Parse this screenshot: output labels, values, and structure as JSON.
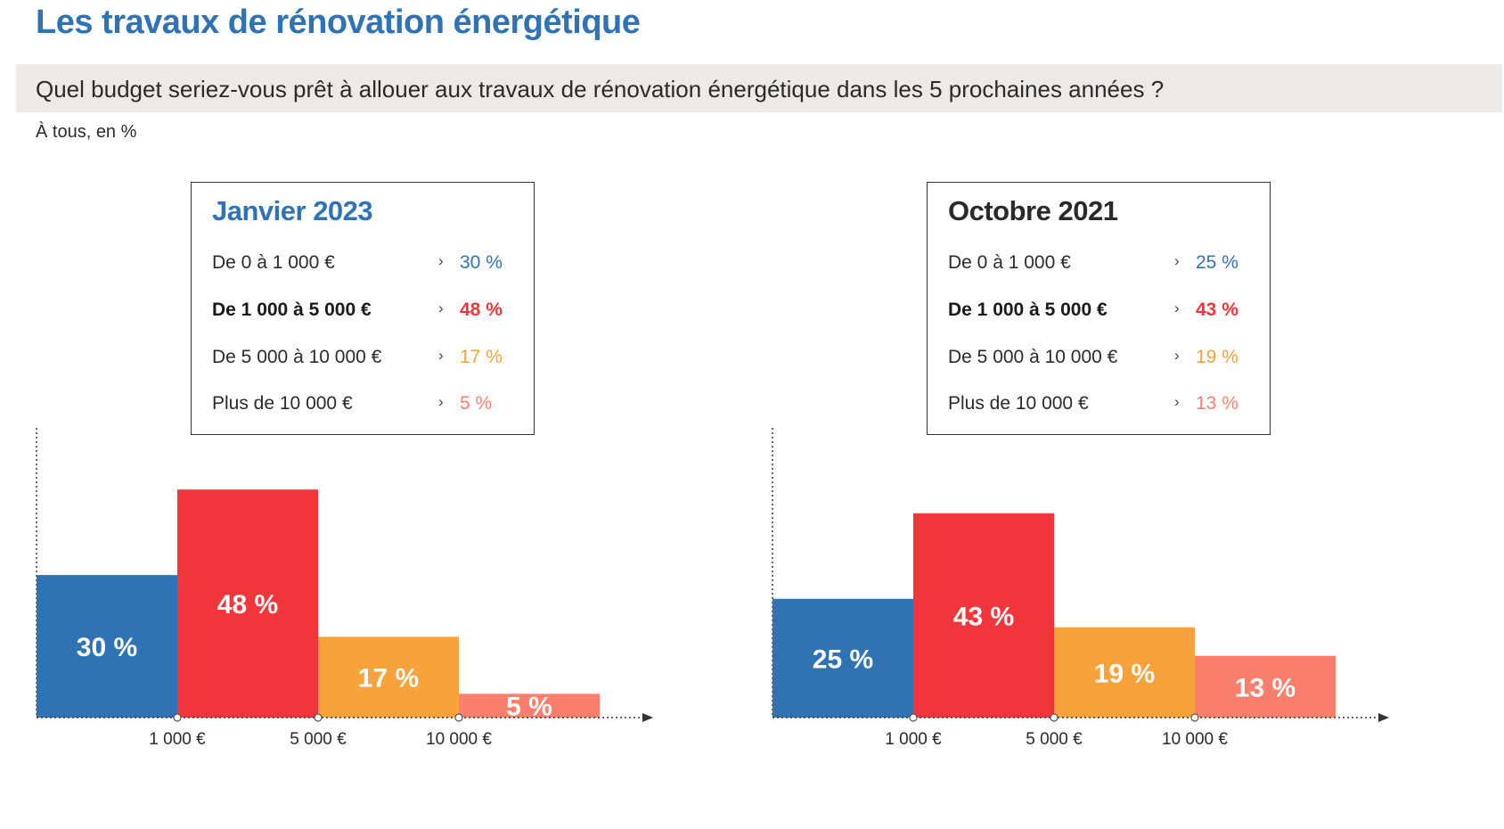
{
  "header": {
    "title": "Les travaux de rénovation énergétique",
    "question": "Quel budget seriez-vous prêt à allouer aux travaux de rénovation énergétique dans les 5 prochaines années ?",
    "base": "À tous, en %"
  },
  "colors": {
    "title": "#2f73b5",
    "blue": "#2f73b5",
    "red": "#f0363a",
    "orange": "#f7a23a",
    "salmon": "#fb7f6d",
    "legend_title_dark": "#2a2a2a",
    "question_bar": "#ece9e6"
  },
  "panels": [
    {
      "legend_title": "Janvier 2023",
      "legend_title_color": "#2f73b5",
      "legend": [
        {
          "label": "De 0 à 1 000 €",
          "arrow": "›",
          "value": "30 %",
          "color": "#2f73b5",
          "bold": false
        },
        {
          "label": "De 1 000 à 5 000 €",
          "arrow": "›",
          "value": "48 %",
          "color": "#f0363a",
          "bold": true
        },
        {
          "label": "De 5 000 à 10 000 €",
          "arrow": "›",
          "value": "17 %",
          "color": "#f7a23a",
          "bold": false
        },
        {
          "label": "Plus de 10 000 €",
          "arrow": "›",
          "value": "5 %",
          "color": "#fb7f6d",
          "bold": false
        }
      ]
    },
    {
      "legend_title": "Octobre 2021",
      "legend_title_color": "#2a2a2a",
      "legend": [
        {
          "label": "De 0 à 1 000 €",
          "arrow": "›",
          "value": "25 %",
          "color": "#2f73b5",
          "bold": false
        },
        {
          "label": "De 1 000 à 5 000 €",
          "arrow": "›",
          "value": "43 %",
          "color": "#f0363a",
          "bold": true
        },
        {
          "label": "De 5 000 à 10 000 €",
          "arrow": "›",
          "value": "19 %",
          "color": "#f7a23a",
          "bold": false
        },
        {
          "label": "Plus de 10 000 €",
          "arrow": "›",
          "value": "13 %",
          "color": "#fb7f6d",
          "bold": false
        }
      ]
    }
  ],
  "chart_data": [
    {
      "type": "bar",
      "title": "Janvier 2023",
      "categories": [
        "De 0 à 1 000 €",
        "De 1 000 à 5 000 €",
        "De 5 000 à 10 000 €",
        "Plus de 10 000 €"
      ],
      "values": [
        30,
        48,
        17,
        5
      ],
      "value_labels": [
        "30 %",
        "48 %",
        "17 %",
        "5 %"
      ],
      "colors": [
        "#2f73b5",
        "#f0363a",
        "#f7a23a",
        "#fb7f6d"
      ],
      "x_tick_labels": [
        "1 000 €",
        "5 000 €",
        "10 000 €"
      ],
      "ylim": [
        0,
        60
      ],
      "grid": false
    },
    {
      "type": "bar",
      "title": "Octobre 2021",
      "categories": [
        "De 0 à 1 000 €",
        "De 1 000 à 5 000 €",
        "De 5 000 à 10 000 €",
        "Plus de 10 000 €"
      ],
      "values": [
        25,
        43,
        19,
        13
      ],
      "value_labels": [
        "25 %",
        "43 %",
        "19 %",
        "13 %"
      ],
      "colors": [
        "#2f73b5",
        "#f0363a",
        "#f7a23a",
        "#fb7f6d"
      ],
      "x_tick_labels": [
        "1 000 €",
        "5 000 €",
        "10 000 €"
      ],
      "ylim": [
        0,
        60
      ],
      "grid": false
    }
  ]
}
